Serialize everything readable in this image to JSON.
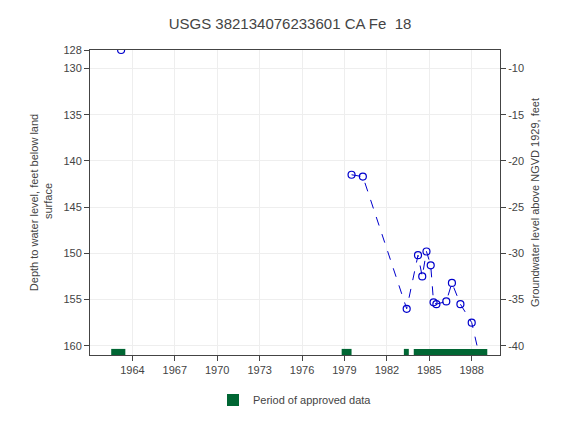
{
  "chart_data": {
    "type": "scatter",
    "title": "USGS 382134076233601 CA Fe  18",
    "ylabel": "Depth to water level, feet below land\n surface",
    "y2label": "Groundwater level above NGVD 1929, feet",
    "xlim": [
      1961.0,
      1990.0
    ],
    "xticks": [
      1964,
      1967,
      1970,
      1973,
      1976,
      1979,
      1982,
      1985,
      1988
    ],
    "ylim": [
      161,
      128
    ],
    "yticks": [
      128,
      130,
      135,
      140,
      145,
      150,
      155,
      160
    ],
    "y2lim": [
      -41,
      -8
    ],
    "y2ticks": [
      -10,
      -15,
      -20,
      -25,
      -30,
      -35,
      -40
    ],
    "grid": true,
    "legend": "bottom",
    "series": [
      {
        "type": "scatter",
        "marker": "circle-open",
        "color": "#0000cc",
        "x": [
          1963.2,
          1979.5,
          1980.3,
          1983.4,
          1984.2,
          1984.5,
          1984.8,
          1985.1,
          1985.3,
          1985.5,
          1986.2,
          1986.6,
          1987.2,
          1988.0,
          1988.5
        ],
        "values": [
          128.0,
          141.5,
          141.7,
          156.0,
          150.2,
          152.5,
          149.8,
          151.3,
          155.3,
          155.5,
          155.2,
          153.2,
          155.5,
          157.5,
          160.8
        ]
      },
      {
        "type": "line",
        "line_style": "dashed",
        "color": "#0000cc",
        "x": [
          1979.5,
          1980.3,
          1983.4,
          1984.2,
          1984.5,
          1984.8,
          1985.1,
          1985.3,
          1985.5,
          1986.2,
          1986.6,
          1987.2,
          1988.0,
          1988.5
        ],
        "values": [
          141.5,
          141.7,
          156.0,
          150.2,
          152.5,
          149.8,
          151.3,
          155.3,
          155.5,
          155.2,
          153.2,
          155.5,
          157.5,
          160.8
        ]
      },
      {
        "name": "Period of approved data",
        "type": "bar",
        "color": "#006633",
        "periods": [
          [
            1962.5,
            1963.5
          ],
          [
            1978.8,
            1979.5
          ],
          [
            1983.2,
            1983.55
          ],
          [
            1983.9,
            1989.1
          ]
        ]
      }
    ]
  }
}
